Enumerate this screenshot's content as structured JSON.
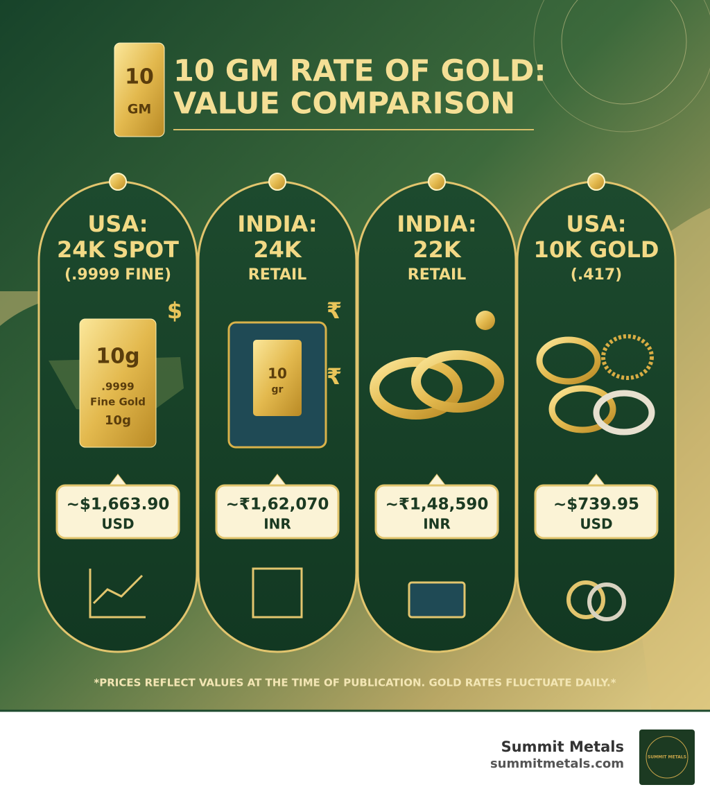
{
  "badge": {
    "number": "10",
    "unit": "GM"
  },
  "title": [
    "10 GM RATE OF GOLD:",
    "VALUE COMPARISON"
  ],
  "cards": [
    {
      "heading": [
        "USA:",
        "24K SPOT",
        "(.9999 FINE)"
      ],
      "symbols": [
        "$"
      ],
      "art_text": [
        "10g",
        ".9999",
        "Fine Gold",
        "10g"
      ],
      "price": "~$1,663.90",
      "currency": "USD"
    },
    {
      "heading": [
        "INDIA:",
        "24K",
        "RETAIL"
      ],
      "symbols": [
        "₹",
        "₹"
      ],
      "art_text": [
        "10",
        "gr"
      ],
      "price": "~₹1,62,070",
      "currency": "INR"
    },
    {
      "heading": [
        "INDIA:",
        "22K",
        "RETAIL"
      ],
      "symbols": [],
      "art_text": [],
      "price": "~₹1,48,590",
      "currency": "INR"
    },
    {
      "heading": [
        "USA:",
        "10K GOLD",
        "(.417)"
      ],
      "symbols": [],
      "art_text": [],
      "price": "~$739.95",
      "currency": "USD"
    }
  ],
  "footnote": "*PRICES REFLECT VALUES AT THE TIME OF PUBLICATION. GOLD RATES FLUCTUATE DAILY.*",
  "brand": {
    "name": "Summit Metals",
    "url": "summitmetals.com",
    "logo_text": "SUMMIT METALS"
  }
}
